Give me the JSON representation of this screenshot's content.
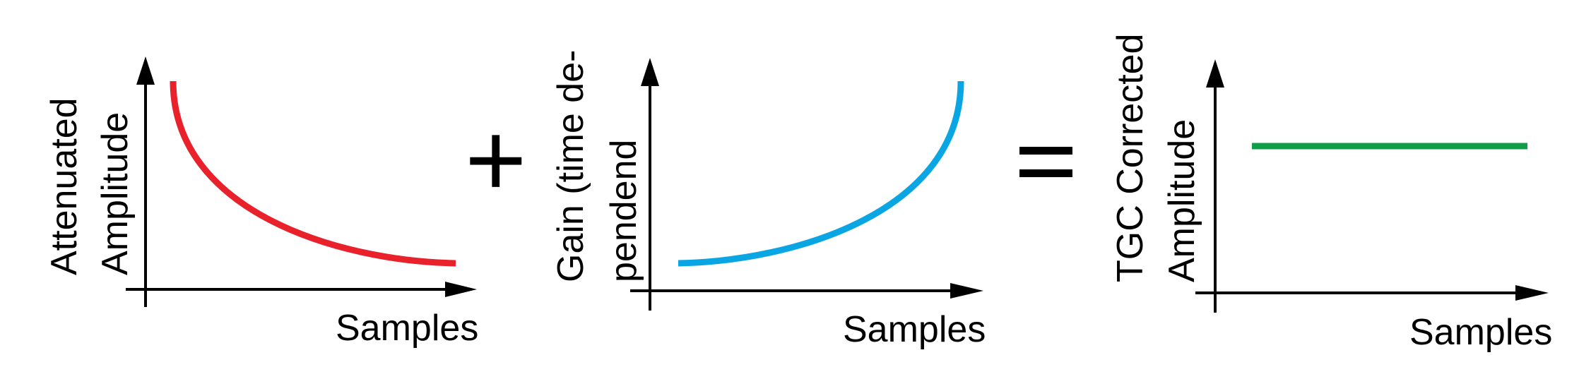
{
  "panels": [
    {
      "ylabel_lines": [
        "Attenuated",
        "Amplitude"
      ],
      "xlabel": "Samples",
      "curve": "decaying",
      "color": "#e8212b"
    },
    {
      "ylabel_lines": [
        "Gain (time de-",
        "pendend"
      ],
      "xlabel": "Samples",
      "curve": "rising",
      "color": "#0aa6e4"
    },
    {
      "ylabel_lines": [
        "TGC Corrected",
        "Amplitude"
      ],
      "xlabel": "Samples",
      "curve": "flat",
      "color": "#0f9d48"
    }
  ],
  "operators": {
    "plus": "+",
    "equals": "="
  }
}
